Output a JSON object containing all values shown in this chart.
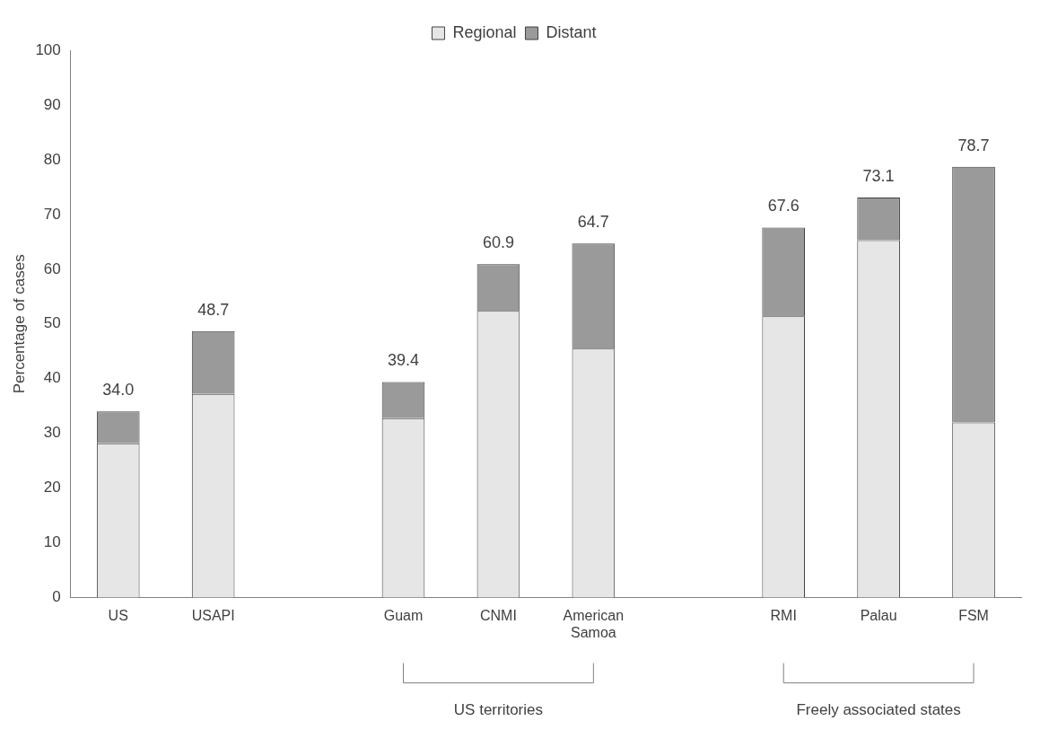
{
  "chart_data": {
    "type": "bar",
    "stacked": true,
    "ylabel": "Percentage of cases",
    "categories": [
      "US",
      "USAPI",
      null,
      "Guam",
      "CNMI",
      "American Samoa",
      null,
      "RMI",
      "Palau",
      "FSM"
    ],
    "series": [
      {
        "name": "Regional",
        "color": "#e6e6e6",
        "values": [
          28.2,
          37.2,
          null,
          32.8,
          52.4,
          45.5,
          null,
          51.4,
          65.3,
          32.0
        ]
      },
      {
        "name": "Distant",
        "color": "#9a9a9a",
        "values": [
          5.8,
          11.5,
          null,
          6.6,
          8.5,
          19.2,
          null,
          16.2,
          7.8,
          46.7
        ]
      }
    ],
    "totals": [
      "34.0",
      "48.7",
      null,
      "39.4",
      "60.9",
      "64.7",
      null,
      "67.6",
      "73.1",
      "78.7"
    ],
    "ylim": [
      0,
      100
    ],
    "yticks": [
      0,
      10,
      20,
      30,
      40,
      50,
      60,
      70,
      80,
      90,
      100
    ],
    "grid": false,
    "legend": "top",
    "annotations": [
      "US territories",
      "Freely associated states"
    ]
  }
}
